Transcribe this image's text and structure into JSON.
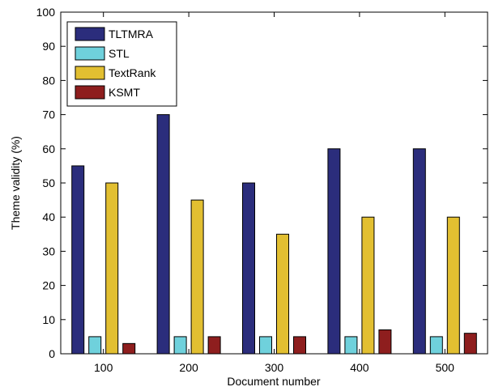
{
  "chart_data": {
    "type": "bar",
    "xlabel": "Document number",
    "ylabel": "Theme validity (%)",
    "ylim": [
      0,
      100
    ],
    "yticks": [
      "0",
      "10",
      "20",
      "30",
      "40",
      "50",
      "60",
      "70",
      "80",
      "90",
      "100"
    ],
    "categories": [
      "100",
      "200",
      "300",
      "400",
      "500"
    ],
    "legend_position": "top-left",
    "grid": false,
    "series": [
      {
        "name": "TLTMRA",
        "color": "#2B2D7C",
        "values": [
          55,
          70,
          50,
          60,
          60
        ]
      },
      {
        "name": "STL",
        "color": "#6FD1DC",
        "values": [
          5,
          5,
          5,
          5,
          5
        ]
      },
      {
        "name": "TextRank",
        "color": "#E2BF31",
        "values": [
          50,
          45,
          35,
          40,
          40
        ]
      },
      {
        "name": "KSMT",
        "color": "#8E1E1E",
        "values": [
          3,
          5,
          5,
          7,
          6
        ]
      }
    ]
  }
}
